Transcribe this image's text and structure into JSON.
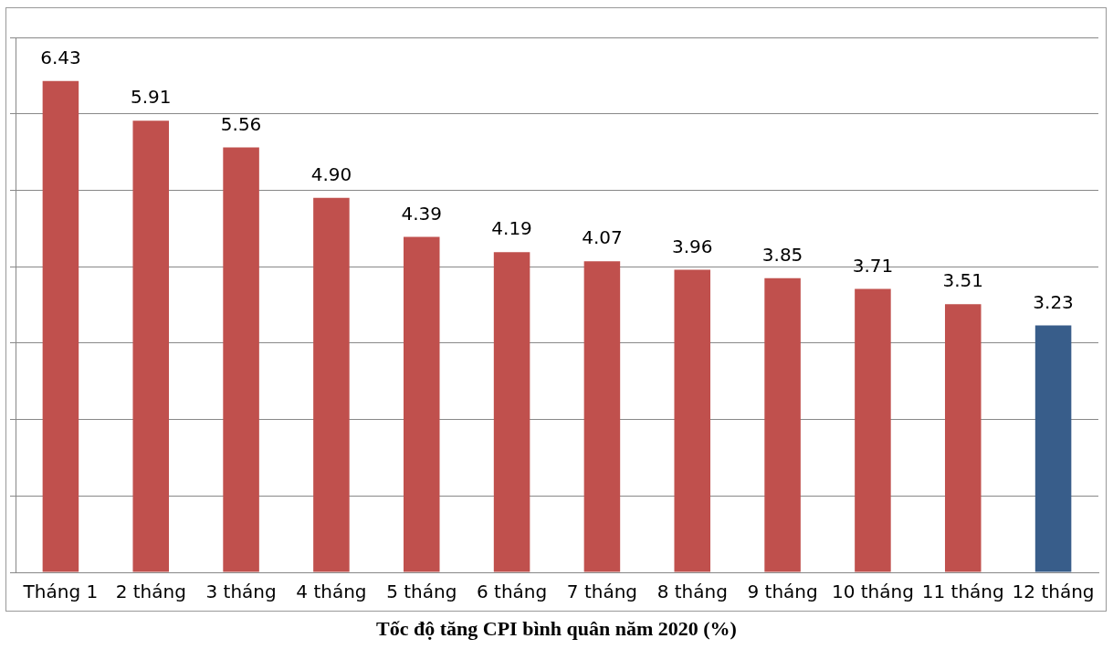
{
  "chart_data": {
    "type": "bar",
    "title": "Tốc độ tăng CPI bình quân năm 2020 (%)",
    "categories": [
      "Tháng 1",
      "2 tháng",
      "3 tháng",
      "4 tháng",
      "5 tháng",
      "6 tháng",
      "7 tháng",
      "8 tháng",
      "9 tháng",
      "10 tháng",
      "11 tháng",
      "12 tháng"
    ],
    "values": [
      6.43,
      5.91,
      5.56,
      4.9,
      4.39,
      4.19,
      4.07,
      3.96,
      3.85,
      3.71,
      3.51,
      3.23
    ],
    "value_labels": [
      "6.43",
      "5.91",
      "5.56",
      "4.90",
      "4.39",
      "4.19",
      "4.07",
      "3.96",
      "3.85",
      "3.71",
      "3.51",
      "3.23"
    ],
    "colors": [
      "#c0504d",
      "#c0504d",
      "#c0504d",
      "#c0504d",
      "#c0504d",
      "#c0504d",
      "#c0504d",
      "#c0504d",
      "#c0504d",
      "#c0504d",
      "#c0504d",
      "#385d8a"
    ],
    "ylim": [
      0,
      7
    ],
    "yticks": [
      {
        "value": 0,
        "label": null
      },
      {
        "value": 1,
        "label": null
      },
      {
        "value": 2,
        "label": null
      },
      {
        "value": 3,
        "label": null
      },
      {
        "value": 4,
        "label": null
      },
      {
        "value": 5,
        "label": null
      },
      {
        "value": 6,
        "label": null
      },
      {
        "value": 7,
        "label": null
      }
    ],
    "grid": "y",
    "tick_labels": "x",
    "legend": false
  }
}
